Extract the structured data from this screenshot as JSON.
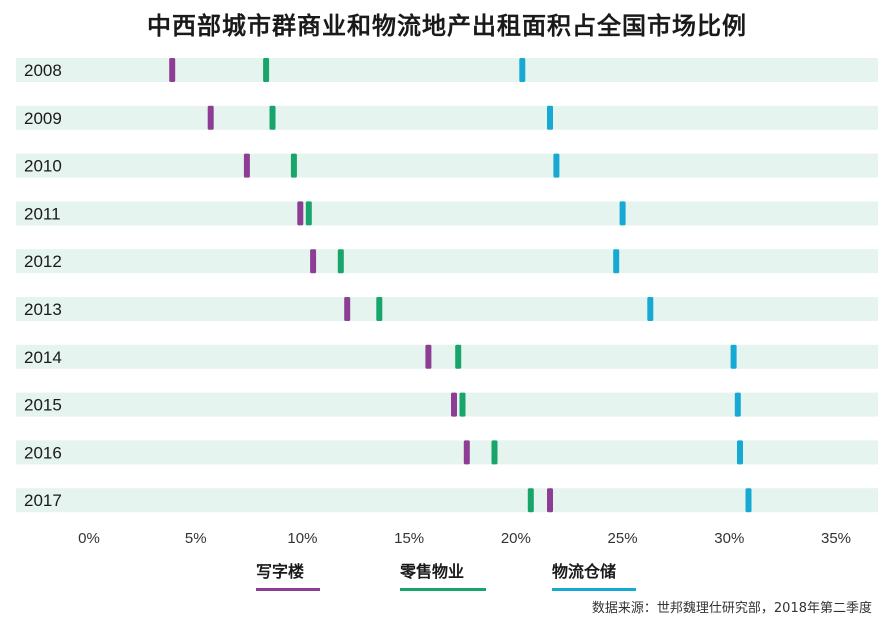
{
  "chart_data": {
    "type": "dot",
    "title": "中西部城市群商业和物流地产出租面积占全国市场比例",
    "categories": [
      "2008",
      "2009",
      "2010",
      "2011",
      "2012",
      "2013",
      "2014",
      "2015",
      "2016",
      "2017"
    ],
    "x_ticks": [
      "0%",
      "5%",
      "10%",
      "15%",
      "20%",
      "25%",
      "30%",
      "35%"
    ],
    "xlim": [
      0,
      35
    ],
    "unit": "%",
    "series": [
      {
        "name": "写字楼",
        "color": "#8e3d94",
        "values": [
          3.9,
          5.7,
          7.4,
          9.9,
          10.5,
          12.1,
          15.9,
          17.1,
          17.7,
          21.6
        ]
      },
      {
        "name": "零售物业",
        "color": "#17a56b",
        "values": [
          8.3,
          8.6,
          9.6,
          10.3,
          11.8,
          13.6,
          17.3,
          17.5,
          19.0,
          20.7
        ]
      },
      {
        "name": "物流仓储",
        "color": "#15a9d4",
        "values": [
          20.3,
          21.6,
          21.9,
          25.0,
          24.7,
          26.3,
          30.2,
          30.4,
          30.5,
          30.9
        ]
      }
    ],
    "row_band_color": "#e6f4ef",
    "source": "数据来源：世邦魏理仕研究部，2018年第二季度"
  }
}
